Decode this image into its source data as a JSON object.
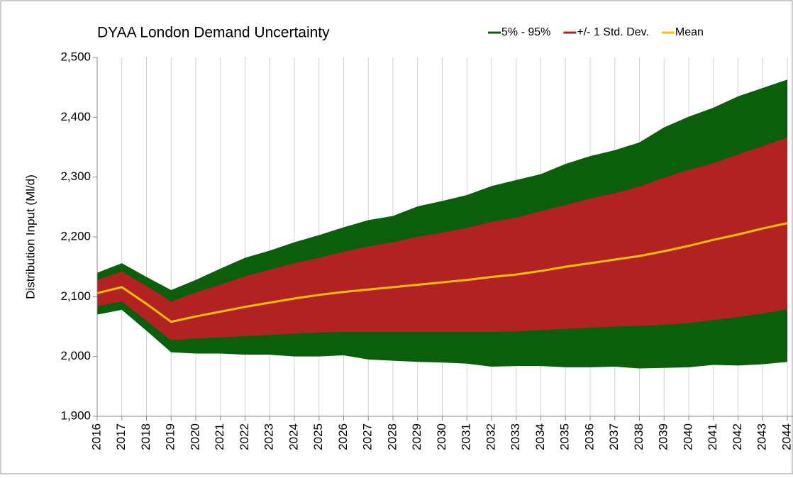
{
  "chart_data": {
    "type": "band",
    "title": "DYAA London Demand Uncertainty",
    "y_label": "Distribution Input (Ml/d)",
    "categories": [
      "2016",
      "2017",
      "2018",
      "2019",
      "2020",
      "2021",
      "2022",
      "2023",
      "2024",
      "2025",
      "2026",
      "2027",
      "2028",
      "2029",
      "2030",
      "2031",
      "2032",
      "2033",
      "2034",
      "2035",
      "2036",
      "2037",
      "2038",
      "2039",
      "2040",
      "2041",
      "2042",
      "2043",
      "2044"
    ],
    "series": [
      {
        "name": "5% - 95%",
        "color": "#0b5e0b",
        "low": [
          2070,
          2078,
          2043,
          2007,
          2005,
          2005,
          2003,
          2003,
          2000,
          2000,
          2002,
          1995,
          1993,
          1991,
          1990,
          1988,
          1983,
          1984,
          1984,
          1982,
          1982,
          1983,
          1980,
          1981,
          1982,
          1986,
          1985,
          1987,
          1991
        ],
        "high": [
          2140,
          2156,
          2133,
          2111,
          2128,
          2147,
          2165,
          2177,
          2191,
          2203,
          2216,
          2228,
          2235,
          2251,
          2260,
          2270,
          2285,
          2295,
          2305,
          2322,
          2335,
          2345,
          2358,
          2383,
          2401,
          2416,
          2435,
          2449,
          2463
        ]
      },
      {
        "name": "+/- 1 Std. Dev.",
        "color": "#b22222",
        "low": [
          2084,
          2092,
          2060,
          2027,
          2030,
          2032,
          2034,
          2036,
          2038,
          2040,
          2041,
          2041,
          2041,
          2041,
          2041,
          2041,
          2041,
          2042,
          2044,
          2046,
          2048,
          2050,
          2051,
          2053,
          2056,
          2061,
          2066,
          2072,
          2079
        ],
        "high": [
          2128,
          2142,
          2118,
          2092,
          2107,
          2120,
          2134,
          2145,
          2156,
          2165,
          2175,
          2184,
          2191,
          2200,
          2207,
          2215,
          2225,
          2232,
          2243,
          2253,
          2264,
          2273,
          2284,
          2299,
          2312,
          2323,
          2338,
          2352,
          2366
        ]
      },
      {
        "name": "Mean",
        "color": "#ffc000",
        "values": [
          2106,
          2116,
          2088,
          2058,
          2067,
          2075,
          2083,
          2090,
          2097,
          2103,
          2108,
          2112,
          2116,
          2120,
          2124,
          2128,
          2133,
          2137,
          2143,
          2150,
          2156,
          2162,
          2168,
          2176,
          2185,
          2195,
          2204,
          2214,
          2223
        ]
      }
    ],
    "ylim": [
      1900,
      2500
    ],
    "yticks": [
      {
        "value": 1900,
        "label": "1,900"
      },
      {
        "value": 2000,
        "label": "2,000"
      },
      {
        "value": 2100,
        "label": "2,100"
      },
      {
        "value": 2200,
        "label": "2,200"
      },
      {
        "value": 2300,
        "label": "2,300"
      },
      {
        "value": 2400,
        "label": "2,400"
      },
      {
        "value": 2500,
        "label": "2,500"
      }
    ],
    "grid": "vertical"
  }
}
